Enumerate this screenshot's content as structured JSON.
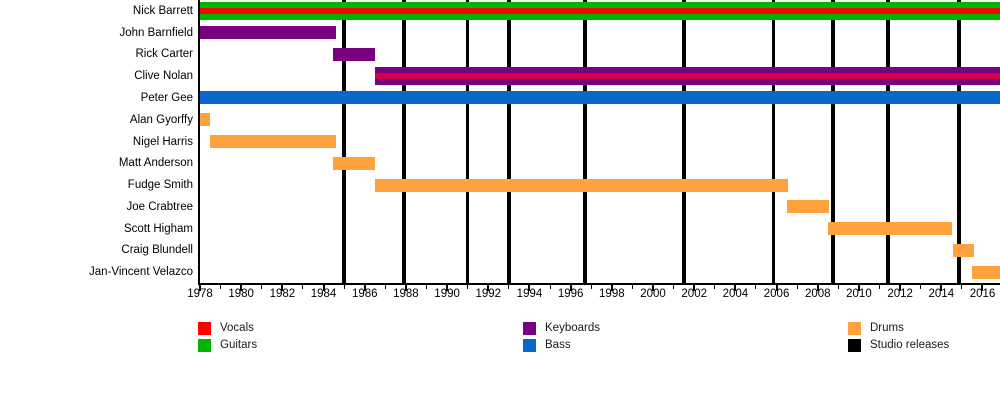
{
  "chart_data": {
    "type": "timeline",
    "description": "Band members timeline (Gantt-style) with studio release markers",
    "x_axis": {
      "min": 1978,
      "max": 2016.85,
      "major_tick_interval": 2,
      "minor_tick_interval": 1,
      "tick_labels": [
        "1978",
        "1980",
        "1982",
        "1984",
        "1986",
        "1988",
        "1990",
        "1992",
        "1994",
        "1996",
        "1998",
        "2000",
        "2002",
        "2004",
        "2006",
        "2008",
        "2010",
        "2012",
        "2014",
        "2016"
      ],
      "grid": false
    },
    "colors": {
      "vocals": "#FF0000",
      "vocals_stripe": "#EE0900",
      "vocals_backing_stripe": "#D4004B",
      "guitars": "#00B400",
      "keyboards": "#7A0082",
      "bass": "#0A66C8",
      "drums": "#FFA13C",
      "releases": "#000000"
    },
    "members": [
      {
        "name": "Nick Barrett",
        "roles": "Guitars, Vocals",
        "start": 1978,
        "end": 2016.85,
        "color": "guitars",
        "stripe": "vocals_stripe"
      },
      {
        "name": "John Barnfield",
        "roles": "Keyboards",
        "start": 1978,
        "end": 1984.6,
        "color": "keyboards",
        "stripe": null
      },
      {
        "name": "Rick Carter",
        "roles": "Keyboards",
        "start": 1984.45,
        "end": 1986.5,
        "color": "keyboards",
        "stripe": null
      },
      {
        "name": "Clive Nolan",
        "roles": "Keyboards, Vocals",
        "start": 1986.5,
        "end": 2016.85,
        "color": "keyboards",
        "stripe": "vocals_backing_stripe"
      },
      {
        "name": "Peter Gee",
        "roles": "Bass",
        "start": 1978,
        "end": 2016.85,
        "color": "bass",
        "stripe": null
      },
      {
        "name": "Alan Gyorffy",
        "roles": "Drums",
        "start": 1978,
        "end": 1978.5,
        "color": "drums",
        "stripe": null
      },
      {
        "name": "Nigel Harris",
        "roles": "Drums",
        "start": 1978.5,
        "end": 1984.6,
        "color": "drums",
        "stripe": null
      },
      {
        "name": "Matt Anderson",
        "roles": "Drums",
        "start": 1984.45,
        "end": 1986.5,
        "color": "drums",
        "stripe": null
      },
      {
        "name": "Fudge Smith",
        "roles": "Drums",
        "start": 1986.5,
        "end": 2006.55,
        "color": "drums",
        "stripe": null
      },
      {
        "name": "Joe Crabtree",
        "roles": "Drums",
        "start": 2006.5,
        "end": 2008.55,
        "color": "drums",
        "stripe": null
      },
      {
        "name": "Scott Higham",
        "roles": "Drums",
        "start": 2008.5,
        "end": 2014.5,
        "color": "drums",
        "stripe": null
      },
      {
        "name": "Craig Blundell",
        "roles": "Drums",
        "start": 2014.55,
        "end": 2015.6,
        "color": "drums",
        "stripe": null
      },
      {
        "name": "Jan-Vincent Velazco",
        "roles": "Drums",
        "start": 2015.5,
        "end": 2016.85,
        "color": "drums",
        "stripe": null
      }
    ],
    "studio_releases": [
      1985.0,
      1987.9,
      1991.0,
      1993.0,
      1996.7,
      2001.5,
      2005.85,
      2008.75,
      2011.4,
      2014.85
    ],
    "legend": {
      "position": "bottom",
      "items": [
        {
          "label": "Vocals",
          "color": "vocals",
          "col": 0,
          "row": 0
        },
        {
          "label": "Guitars",
          "color": "guitars",
          "col": 0,
          "row": 1
        },
        {
          "label": "Keyboards",
          "color": "keyboards",
          "col": 1,
          "row": 0
        },
        {
          "label": "Bass",
          "color": "bass",
          "col": 1,
          "row": 1
        },
        {
          "label": "Drums",
          "color": "drums",
          "col": 2,
          "row": 0
        },
        {
          "label": "Studio releases",
          "color": "releases",
          "col": 2,
          "row": 1
        }
      ]
    }
  }
}
